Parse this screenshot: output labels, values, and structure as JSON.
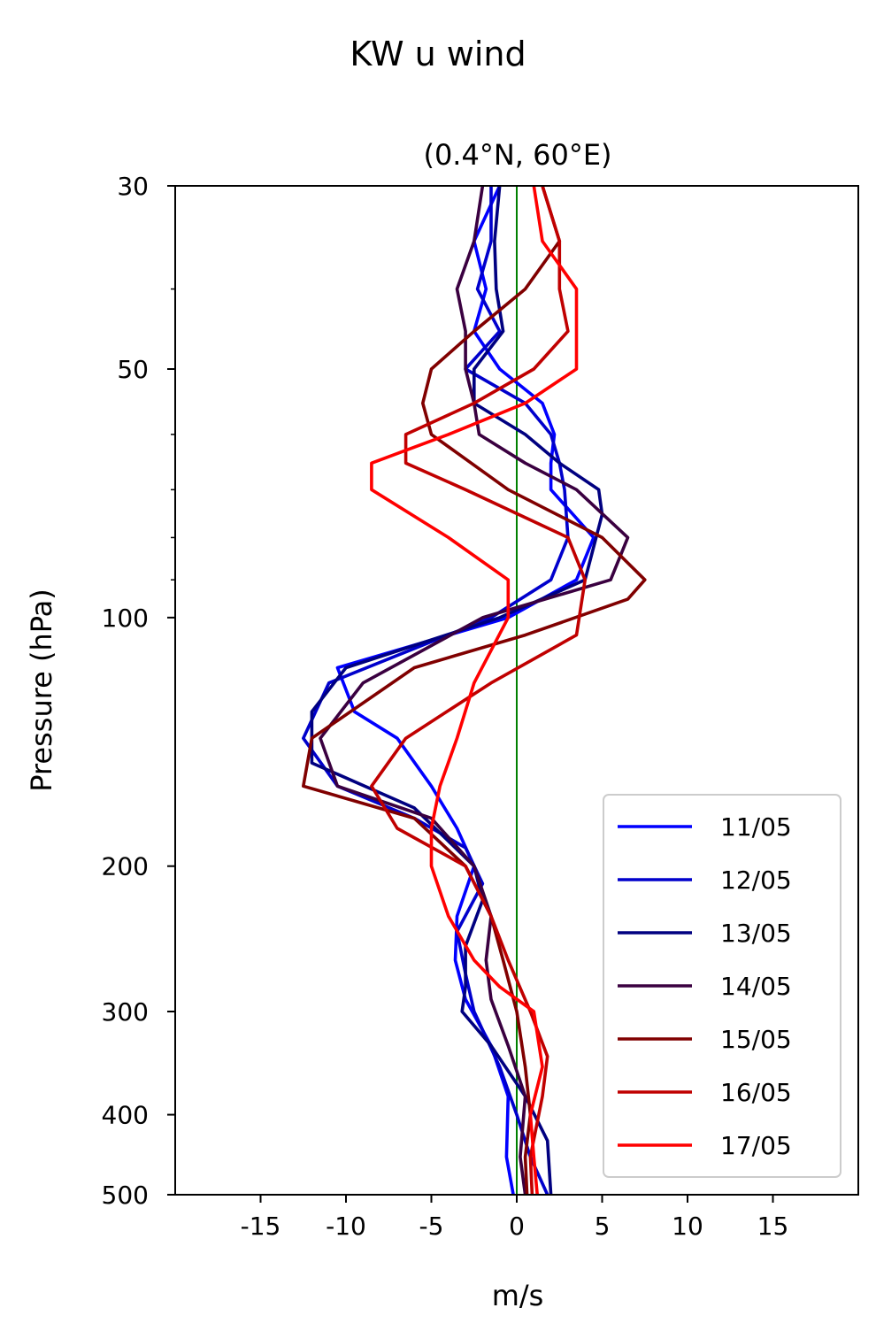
{
  "chart_data": {
    "type": "line",
    "title": "KW u wind",
    "subtitle": "(0.4°N, 60°E)",
    "xlabel": "m/s",
    "ylabel": "Pressure (hPa)",
    "xlim": [
      -20,
      20
    ],
    "ylim": [
      500,
      30
    ],
    "yscale": "log",
    "grid": false,
    "legend_position": "bottom-right",
    "x_ticks": [
      -15,
      -10,
      -5,
      0,
      5,
      10,
      15
    ],
    "x_tick_labels": [
      "-15",
      "-10",
      "-5",
      "0",
      "5",
      "10",
      "15"
    ],
    "y_ticks": [
      30,
      50,
      100,
      200,
      300,
      400,
      500
    ],
    "y_tick_labels": [
      "30",
      "50",
      "100",
      "200",
      "300",
      "400",
      "500"
    ],
    "y_minor_ticks": [
      40,
      60,
      70,
      80,
      90
    ],
    "reference_line": {
      "x": 0,
      "color": "#008000"
    },
    "series": [
      {
        "name": "11/05",
        "color": "#0000ff",
        "points": [
          [
            -1.0,
            30
          ],
          [
            -2.5,
            35
          ],
          [
            -1.8,
            40
          ],
          [
            -2.5,
            45
          ],
          [
            -1.0,
            50
          ],
          [
            1.5,
            55
          ],
          [
            2.2,
            60
          ],
          [
            2.0,
            65
          ],
          [
            2.0,
            70
          ],
          [
            4.5,
            80
          ],
          [
            3.5,
            90
          ],
          [
            -0.5,
            100
          ],
          [
            -10.5,
            115
          ],
          [
            -9.5,
            130
          ],
          [
            -7.0,
            140
          ],
          [
            -5.0,
            160
          ],
          [
            -3.5,
            180
          ],
          [
            -2.5,
            200
          ],
          [
            -3.5,
            230
          ],
          [
            -3.6,
            260
          ],
          [
            -3.0,
            290
          ],
          [
            -1.5,
            330
          ],
          [
            -0.5,
            380
          ],
          [
            -0.6,
            450
          ],
          [
            -0.2,
            500
          ]
        ]
      },
      {
        "name": "12/05",
        "color": "#0000cc",
        "points": [
          [
            -1.5,
            30
          ],
          [
            -1.5,
            35
          ],
          [
            -2.3,
            40
          ],
          [
            -1.0,
            45
          ],
          [
            -3.0,
            50
          ],
          [
            0.5,
            55
          ],
          [
            2.0,
            60
          ],
          [
            2.5,
            65
          ],
          [
            2.8,
            70
          ],
          [
            3.0,
            80
          ],
          [
            2.0,
            90
          ],
          [
            -1.5,
            100
          ],
          [
            -11.0,
            120
          ],
          [
            -12.5,
            140
          ],
          [
            -10.5,
            160
          ],
          [
            -6.0,
            175
          ],
          [
            -3.0,
            190
          ],
          [
            -2.0,
            210
          ],
          [
            -3.5,
            240
          ],
          [
            -3.0,
            270
          ],
          [
            -2.5,
            300
          ],
          [
            -1.0,
            350
          ],
          [
            0.0,
            400
          ],
          [
            0.8,
            450
          ],
          [
            1.8,
            500
          ]
        ]
      },
      {
        "name": "13/05",
        "color": "#000080",
        "points": [
          [
            -1.0,
            30
          ],
          [
            -1.3,
            35
          ],
          [
            -1.2,
            40
          ],
          [
            -0.8,
            45
          ],
          [
            -2.5,
            50
          ],
          [
            -2.5,
            55
          ],
          [
            0.5,
            60
          ],
          [
            2.5,
            65
          ],
          [
            4.8,
            70
          ],
          [
            5.0,
            75
          ],
          [
            4.0,
            90
          ],
          [
            -1.0,
            100
          ],
          [
            -10.0,
            115
          ],
          [
            -12.0,
            130
          ],
          [
            -12.0,
            150
          ],
          [
            -6.0,
            170
          ],
          [
            -2.5,
            200
          ],
          [
            -2.0,
            220
          ],
          [
            -3.0,
            250
          ],
          [
            -3.0,
            280
          ],
          [
            -3.2,
            300
          ],
          [
            -1.5,
            330
          ],
          [
            0.5,
            380
          ],
          [
            1.8,
            430
          ],
          [
            2.0,
            500
          ]
        ]
      },
      {
        "name": "14/05",
        "color": "#3a0040",
        "points": [
          [
            -2.0,
            30
          ],
          [
            -2.5,
            35
          ],
          [
            -3.5,
            40
          ],
          [
            -3.0,
            45
          ],
          [
            -3.0,
            50
          ],
          [
            -2.5,
            55
          ],
          [
            -2.2,
            60
          ],
          [
            0.5,
            65
          ],
          [
            3.5,
            70
          ],
          [
            6.5,
            80
          ],
          [
            5.5,
            90
          ],
          [
            -2.0,
            100
          ],
          [
            -9.0,
            120
          ],
          [
            -11.5,
            140
          ],
          [
            -10.5,
            160
          ],
          [
            -5.0,
            175
          ],
          [
            -2.5,
            200
          ],
          [
            -1.5,
            230
          ],
          [
            -1.8,
            260
          ],
          [
            -1.5,
            290
          ],
          [
            -0.5,
            330
          ],
          [
            0.5,
            380
          ],
          [
            0.2,
            450
          ],
          [
            0.5,
            500
          ]
        ]
      },
      {
        "name": "15/05",
        "color": "#800000",
        "points": [
          [
            1.5,
            30
          ],
          [
            2.5,
            35
          ],
          [
            0.5,
            40
          ],
          [
            -2.5,
            45
          ],
          [
            -5.0,
            50
          ],
          [
            -5.5,
            55
          ],
          [
            -5.0,
            60
          ],
          [
            -0.5,
            70
          ],
          [
            5.0,
            80
          ],
          [
            7.5,
            90
          ],
          [
            6.5,
            95
          ],
          [
            0.5,
            105
          ],
          [
            -6.0,
            115
          ],
          [
            -12.0,
            140
          ],
          [
            -12.5,
            160
          ],
          [
            -6.0,
            175
          ],
          [
            -3.0,
            200
          ],
          [
            -1.5,
            230
          ],
          [
            -0.8,
            260
          ],
          [
            0.0,
            300
          ],
          [
            0.5,
            350
          ],
          [
            0.8,
            400
          ],
          [
            0.5,
            450
          ],
          [
            0.6,
            500
          ]
        ]
      },
      {
        "name": "16/05",
        "color": "#c00000",
        "points": [
          [
            1.5,
            30
          ],
          [
            2.5,
            35
          ],
          [
            2.5,
            40
          ],
          [
            3.0,
            45
          ],
          [
            1.0,
            50
          ],
          [
            -2.5,
            55
          ],
          [
            -6.5,
            60
          ],
          [
            -6.5,
            65
          ],
          [
            -3.0,
            70
          ],
          [
            3.0,
            80
          ],
          [
            4.0,
            90
          ],
          [
            3.5,
            105
          ],
          [
            -1.5,
            120
          ],
          [
            -6.5,
            140
          ],
          [
            -8.5,
            160
          ],
          [
            -7.0,
            180
          ],
          [
            -3.0,
            200
          ],
          [
            -1.5,
            230
          ],
          [
            -0.5,
            260
          ],
          [
            0.8,
            300
          ],
          [
            1.8,
            340
          ],
          [
            1.5,
            380
          ],
          [
            0.8,
            450
          ],
          [
            0.9,
            500
          ]
        ]
      },
      {
        "name": "17/05",
        "color": "#ff0000",
        "points": [
          [
            1.0,
            30
          ],
          [
            1.5,
            35
          ],
          [
            3.5,
            40
          ],
          [
            3.5,
            45
          ],
          [
            3.5,
            50
          ],
          [
            0.5,
            55
          ],
          [
            -4.0,
            60
          ],
          [
            -8.5,
            65
          ],
          [
            -8.5,
            70
          ],
          [
            -4.0,
            80
          ],
          [
            -0.5,
            90
          ],
          [
            -0.5,
            100
          ],
          [
            -2.5,
            120
          ],
          [
            -3.5,
            140
          ],
          [
            -4.5,
            160
          ],
          [
            -5.0,
            180
          ],
          [
            -5.0,
            200
          ],
          [
            -4.0,
            230
          ],
          [
            -2.5,
            260
          ],
          [
            -1.0,
            280
          ],
          [
            1.0,
            300
          ],
          [
            1.5,
            350
          ],
          [
            0.8,
            400
          ],
          [
            1.0,
            450
          ],
          [
            1.2,
            500
          ]
        ]
      }
    ]
  }
}
